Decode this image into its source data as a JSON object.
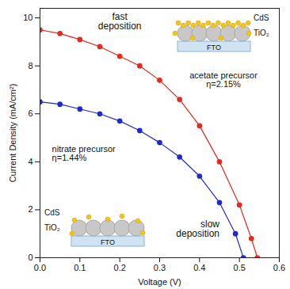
{
  "chart_data": {
    "type": "line",
    "x_label": "Voltage (V)",
    "y_label": "Current Density (mA/cm²)",
    "xlim": [
      0,
      0.6
    ],
    "ylim": [
      0,
      10.4
    ],
    "xticks": [
      {
        "value": 0,
        "label": "0.0"
      },
      0.1,
      0.2,
      0.3,
      0.4,
      0.5,
      0.6
    ],
    "yticks": [
      0,
      2,
      4,
      6,
      8,
      10
    ],
    "grid": false,
    "series": [
      {
        "name": "acetate precursor",
        "color": "#e8281e",
        "marker": "circle",
        "line_style": "solid",
        "x": [
          0,
          0.05,
          0.1,
          0.15,
          0.2,
          0.25,
          0.3,
          0.35,
          0.4,
          0.45,
          0.5,
          0.53,
          0.545
        ],
        "values": [
          9.5,
          9.35,
          9.1,
          8.8,
          8.4,
          8.0,
          7.4,
          6.6,
          5.5,
          4.0,
          2.2,
          0.8,
          0
        ]
      },
      {
        "name": "nitrate precursor",
        "color": "#1f2bd0",
        "marker": "circle",
        "line_style": "solid",
        "x": [
          0,
          0.05,
          0.1,
          0.15,
          0.2,
          0.25,
          0.3,
          0.35,
          0.4,
          0.45,
          0.49,
          0.51
        ],
        "values": [
          6.5,
          6.4,
          6.2,
          6.0,
          5.7,
          5.3,
          4.8,
          4.2,
          3.4,
          2.3,
          1.0,
          0
        ]
      }
    ],
    "annotations": [
      {
        "text": "fast\ndeposition",
        "x": 0.2,
        "y": 9.85
      },
      {
        "text": "acetate precursor\nη=2.15%",
        "x": 0.46,
        "y": 7.4
      },
      {
        "text": "nitrate precursor\nη=1.44%",
        "x": 0.03,
        "y": 4.35
      },
      {
        "text": "slow\ndeposition",
        "x": 0.45,
        "y": 1.2
      }
    ],
    "insets": [
      {
        "name": "fast deposition",
        "labels": [
          "CdS",
          "TiO₂",
          "FTO"
        ]
      },
      {
        "name": "slow deposition",
        "labels": [
          "CdS",
          "TiO₂",
          "FTO"
        ]
      }
    ]
  }
}
